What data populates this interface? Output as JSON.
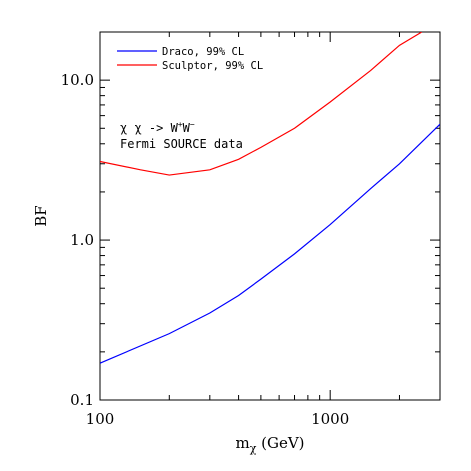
{
  "chart_data": {
    "type": "line",
    "title": "",
    "xlabel": "m",
    "xlabel_subscript": "χ",
    "xlabel_unit": " (GeV)",
    "ylabel": "BF",
    "xlog": true,
    "ylog": true,
    "xlim": [
      100,
      3000
    ],
    "ylim": [
      0.1,
      20
    ],
    "x_ticks": [
      {
        "value": 100,
        "label": "100"
      },
      {
        "value": 1000,
        "label": "1000"
      }
    ],
    "y_ticks": [
      {
        "value": 0.1,
        "label": "0.1"
      },
      {
        "value": 1.0,
        "label": "1.0"
      },
      {
        "value": 10.0,
        "label": "10.0"
      }
    ],
    "legend_placement": "top-left",
    "series": [
      {
        "name": "Draco, 99% CL",
        "color": "#0000ff",
        "x": [
          100,
          200,
          300,
          400,
          500,
          700,
          1000,
          1500,
          2000,
          3000
        ],
        "y": [
          0.17,
          0.26,
          0.35,
          0.45,
          0.57,
          0.82,
          1.25,
          2.1,
          3.0,
          5.3
        ]
      },
      {
        "name": "Sculptor, 99% CL",
        "color": "#ff0000",
        "x": [
          100,
          150,
          200,
          300,
          400,
          500,
          700,
          1000,
          1500,
          2000,
          2500
        ],
        "y": [
          3.1,
          2.75,
          2.55,
          2.75,
          3.2,
          3.8,
          5.0,
          7.3,
          11.5,
          16.5,
          20.0
        ]
      }
    ],
    "annotations": [
      {
        "text": "χ χ -> W",
        "sup1": "+",
        "mid": "W",
        "sup2": "−"
      },
      {
        "text": "Fermi SOURCE data"
      }
    ]
  }
}
